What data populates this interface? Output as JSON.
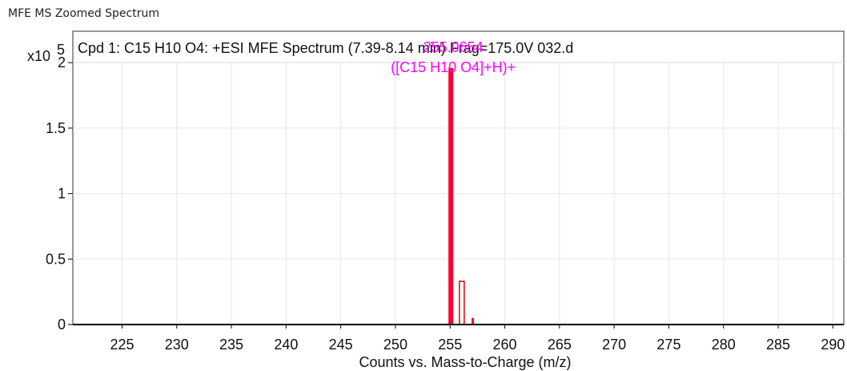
{
  "window": {
    "title": "MFE MS Zoomed Spectrum"
  },
  "colors": {
    "peak_main": "#ff0033",
    "peak_outline": "#e00000",
    "label": "#ff00ff",
    "grid": "#e6e6e6",
    "axis": "#000000"
  },
  "chart_data": {
    "type": "bar",
    "title": "Cpd 1: C15 H10 O4: +ESI MFE Spectrum (7.39-8.14 min) Frag=175.0V 032.d",
    "xlabel": "Counts vs. Mass-to-Charge (m/z)",
    "ylabel": "",
    "y_multiplier_label": "x10",
    "y_multiplier_exp": "5",
    "xlim": [
      220.5,
      291
    ],
    "ylim": [
      0,
      2.24
    ],
    "x_ticks": [
      225,
      230,
      235,
      240,
      245,
      250,
      255,
      260,
      265,
      270,
      275,
      280,
      285,
      290
    ],
    "y_ticks": [
      0,
      0.5,
      1,
      1.5,
      2
    ],
    "y_tick_labels": [
      "0",
      "0.5",
      "1",
      "1.5",
      "2"
    ],
    "grid": true,
    "peaks": [
      {
        "mz": 255.0654,
        "intensity": 1.96,
        "style": "filled"
      },
      {
        "mz": 256.07,
        "intensity": 0.33,
        "style": "outline"
      },
      {
        "mz": 257.07,
        "intensity": 0.05,
        "style": "filled"
      }
    ],
    "annotations": [
      {
        "mz_label": "255.0654",
        "formula_label": "([C15 H10 O4]+H)+"
      }
    ]
  }
}
